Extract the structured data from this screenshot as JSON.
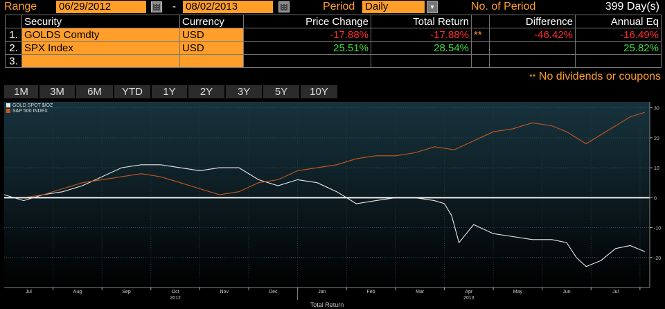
{
  "header": {
    "range_label": "Range",
    "start_date": "06/29/2012",
    "dash": "-",
    "end_date": "08/02/2013",
    "period_label": "Period",
    "period_value": "Daily",
    "dropdown_glyph": "▼",
    "no_of_period_label": "No. of Period",
    "no_of_period_value": "399 Day(s)"
  },
  "table": {
    "columns": [
      "Security",
      "Currency",
      "Price Change",
      "Total Return",
      "Difference",
      "Annual Eq"
    ],
    "rows": [
      {
        "num": "1.",
        "security": "GOLDS Comdty",
        "currency": "USD",
        "price_change": "-17.88%",
        "total_return": "-17.88%",
        "flag": "**",
        "difference": "-46.42%",
        "annual_eq": "-16.49%"
      },
      {
        "num": "2.",
        "security": "SPX Index",
        "currency": "USD",
        "price_change": "25.51%",
        "total_return": "28.54%",
        "flag": "",
        "difference": "",
        "annual_eq": "25.82%"
      },
      {
        "num": "3.",
        "security": "",
        "currency": "",
        "price_change": "",
        "total_return": "",
        "flag": "",
        "difference": "",
        "annual_eq": ""
      }
    ],
    "footnote_marker": "**",
    "footnote_text": "No dividends or coupons"
  },
  "tabs": [
    "1M",
    "3M",
    "6M",
    "YTD",
    "1Y",
    "2Y",
    "3Y",
    "5Y",
    "10Y"
  ],
  "colors": {
    "accent_orange": "#ff9e28",
    "negative_red": "#ff2b2b",
    "positive_green": "#3cdb3c",
    "gold_series": "#e8e8e8",
    "spx_series": "#c8591e"
  },
  "chart_data": {
    "type": "line",
    "title": "",
    "xlabel": "Total Return",
    "ylabel": "",
    "ylim": [
      -30,
      32
    ],
    "yticks": [
      30,
      20,
      10,
      0,
      -10,
      -20
    ],
    "month_labels": [
      "Jul",
      "Aug",
      "Sep",
      "Oct",
      "Nov",
      "Dec",
      "Jan",
      "Feb",
      "Mar",
      "Apr",
      "May",
      "Jun",
      "Jul"
    ],
    "month_index": [
      0.5,
      1.5,
      2.5,
      3.5,
      4.5,
      5.5,
      6.5,
      7.5,
      8.5,
      9.5,
      10.5,
      11.5,
      12.5
    ],
    "year_labels": [
      {
        "label": "2012",
        "at": 3.5
      },
      {
        "label": "2013",
        "at": 9.5
      }
    ],
    "legend_position": "top-left",
    "grid": true,
    "series": [
      {
        "name": "GOLD SPOT $/OZ",
        "color": "#e8e8e8",
        "x": [
          0,
          0.4,
          0.8,
          1.2,
          1.6,
          2.0,
          2.4,
          2.8,
          3.2,
          3.6,
          4.0,
          4.4,
          4.8,
          5.2,
          5.6,
          6.0,
          6.4,
          6.8,
          7.2,
          7.6,
          8.0,
          8.4,
          8.8,
          9.0,
          9.15,
          9.3,
          9.6,
          10.0,
          10.4,
          10.8,
          11.2,
          11.5,
          11.7,
          11.9,
          12.2,
          12.5,
          12.8,
          13.1
        ],
        "y": [
          1,
          -1,
          1,
          2,
          4,
          7,
          10,
          11,
          11,
          10,
          9,
          10,
          10,
          6,
          4,
          6,
          5,
          2,
          -2,
          -1,
          0,
          0,
          -1,
          -2,
          -6,
          -15,
          -9,
          -12,
          -13,
          -14,
          -14,
          -15,
          -20,
          -23,
          -21,
          -17,
          -16,
          -18
        ]
      },
      {
        "name": "S&P 500 INDEX",
        "color": "#c8591e",
        "x": [
          0,
          0.4,
          0.8,
          1.2,
          1.6,
          2.0,
          2.4,
          2.8,
          3.2,
          3.6,
          4.0,
          4.4,
          4.8,
          5.2,
          5.6,
          6.0,
          6.4,
          6.8,
          7.2,
          7.6,
          8.0,
          8.4,
          8.8,
          9.2,
          9.6,
          10.0,
          10.4,
          10.8,
          11.2,
          11.5,
          11.7,
          11.9,
          12.2,
          12.5,
          12.8,
          13.1
        ],
        "y": [
          0,
          0,
          1,
          3,
          5,
          6,
          7,
          8,
          7,
          5,
          3,
          1,
          2,
          5,
          6,
          9,
          10,
          11,
          13,
          14,
          14,
          15,
          17,
          16,
          19,
          22,
          23,
          25,
          24,
          22,
          20,
          18,
          21,
          24,
          27,
          28.5
        ]
      }
    ]
  }
}
